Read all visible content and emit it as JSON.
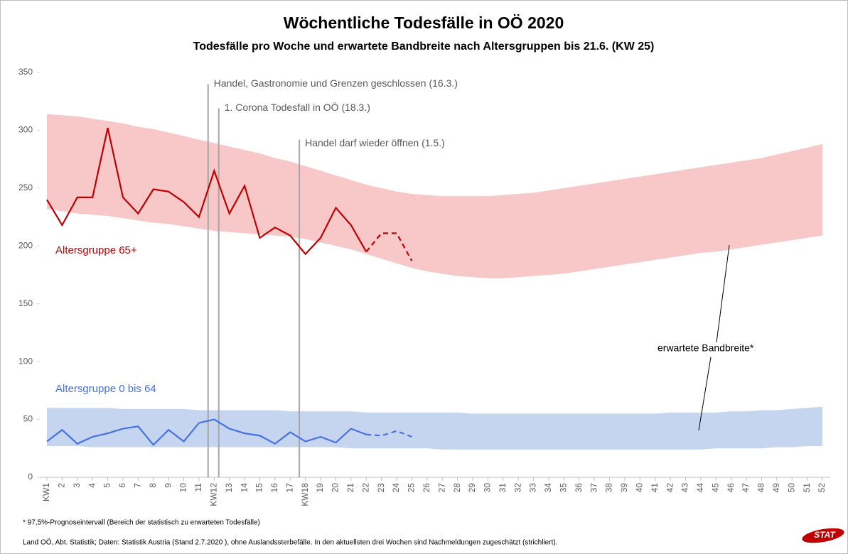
{
  "chart_data": {
    "type": "line",
    "title": "Wöchentliche Todesfälle in OÖ 2020",
    "subtitle": "Todesfälle pro Woche und erwartete Bandbreite nach Altersgruppen bis 21.6. (KW 25)",
    "categories": [
      "KW1",
      "2",
      "3",
      "4",
      "5",
      "6",
      "7",
      "8",
      "9",
      "10",
      "11",
      "KW12",
      "13",
      "14",
      "15",
      "16",
      "17",
      "KW18",
      "19",
      "20",
      "21",
      "22",
      "23",
      "24",
      "25",
      "26",
      "27",
      "28",
      "29",
      "30",
      "31",
      "32",
      "33",
      "34",
      "35",
      "36",
      "37",
      "38",
      "39",
      "40",
      "41",
      "42",
      "43",
      "44",
      "45",
      "46",
      "47",
      "48",
      "49",
      "50",
      "51",
      "52"
    ],
    "ylim": [
      0,
      350
    ],
    "yticks": [
      0,
      50,
      100,
      150,
      200,
      250,
      300,
      350
    ],
    "grid": false,
    "series": [
      {
        "name": "Altersgruppe 65+",
        "color": "#c00000",
        "dashed_count": 3,
        "values": [
          240,
          218,
          242,
          242,
          302,
          242,
          228,
          249,
          247,
          238,
          225,
          265,
          228,
          252,
          207,
          216,
          209,
          193,
          207,
          233,
          218,
          195,
          211,
          211,
          187,
          null,
          null,
          null,
          null,
          null,
          null,
          null,
          null,
          null,
          null,
          null,
          null,
          null,
          null,
          null,
          null,
          null,
          null,
          null,
          null,
          null,
          null,
          null,
          null,
          null,
          null,
          null
        ]
      },
      {
        "name": "Altersgruppe 0 bis 64",
        "color": "#4472e4",
        "dashed_count": 3,
        "values": [
          31,
          41,
          29,
          35,
          38,
          42,
          44,
          28,
          41,
          31,
          47,
          50,
          42,
          38,
          36,
          29,
          39,
          31,
          35,
          30,
          42,
          37,
          36,
          40,
          35,
          null,
          null,
          null,
          null,
          null,
          null,
          null,
          null,
          null,
          null,
          null,
          null,
          null,
          null,
          null,
          null,
          null,
          null,
          null,
          null,
          null,
          null,
          null,
          null,
          null,
          null,
          null
        ]
      }
    ],
    "bands": [
      {
        "color": "#f8c8c8",
        "upper": [
          314,
          313,
          312,
          310,
          308,
          306,
          303,
          301,
          298,
          295,
          292,
          289,
          286,
          283,
          280,
          276,
          273,
          269,
          265,
          261,
          257,
          253,
          250,
          247,
          245,
          244,
          243,
          243,
          243,
          243,
          244,
          245,
          246,
          248,
          250,
          252,
          254,
          256,
          258,
          260,
          262,
          264,
          266,
          268,
          270,
          272,
          274,
          276,
          279,
          282,
          285,
          288
        ],
        "lower": [
          232,
          230,
          228,
          227,
          226,
          224,
          222,
          220,
          219,
          217,
          215,
          213,
          212,
          211,
          210,
          209,
          208,
          206,
          203,
          200,
          197,
          193,
          189,
          185,
          181,
          178,
          176,
          174,
          173,
          172,
          172,
          173,
          174,
          175,
          176,
          178,
          180,
          182,
          184,
          186,
          188,
          190,
          192,
          194,
          195,
          197,
          199,
          201,
          203,
          205,
          207,
          209
        ]
      },
      {
        "color": "#c6d5ef",
        "upper": [
          60,
          60,
          60,
          60,
          60,
          59,
          59,
          59,
          59,
          59,
          58,
          58,
          58,
          58,
          58,
          58,
          57,
          57,
          57,
          57,
          57,
          56,
          56,
          56,
          56,
          56,
          56,
          56,
          55,
          55,
          55,
          55,
          55,
          55,
          55,
          55,
          55,
          55,
          55,
          55,
          55,
          56,
          56,
          56,
          56,
          57,
          57,
          58,
          58,
          59,
          60,
          61
        ],
        "lower": [
          27,
          27,
          27,
          26,
          26,
          26,
          26,
          26,
          26,
          26,
          26,
          26,
          26,
          26,
          26,
          26,
          26,
          26,
          26,
          26,
          25,
          25,
          25,
          25,
          25,
          25,
          24,
          24,
          24,
          24,
          24,
          24,
          24,
          24,
          24,
          24,
          24,
          24,
          24,
          24,
          24,
          24,
          24,
          24,
          25,
          25,
          25,
          25,
          26,
          26,
          27,
          27
        ]
      }
    ],
    "events": [
      {
        "x": 11.6,
        "y": 340,
        "label": "Handel, Gastronomie und Grenzen geschlossen (16.3.)"
      },
      {
        "x": 12.3,
        "y": 319,
        "label": "1. Corona Todesfall in OÖ (18.3.)"
      },
      {
        "x": 17.6,
        "y": 292,
        "label": "Handel darf wieder öffnen (1.5.)"
      }
    ],
    "band_annotation": "erwartete Bandbreite*",
    "footnote": "* 97,5%-Prognoseintervall (Bereich der statistisch zu erwarteten Todesfälle)",
    "source": "Land OÖ, Abt. Statistik; Daten: Statistik Austria (Stand 2.7.2020 ), ohne Auslandssterbefälle. In den aktuellsten drei Wochen sind Nachmeldungen zugeschätzt (strichliert).",
    "logo": "STAT"
  }
}
